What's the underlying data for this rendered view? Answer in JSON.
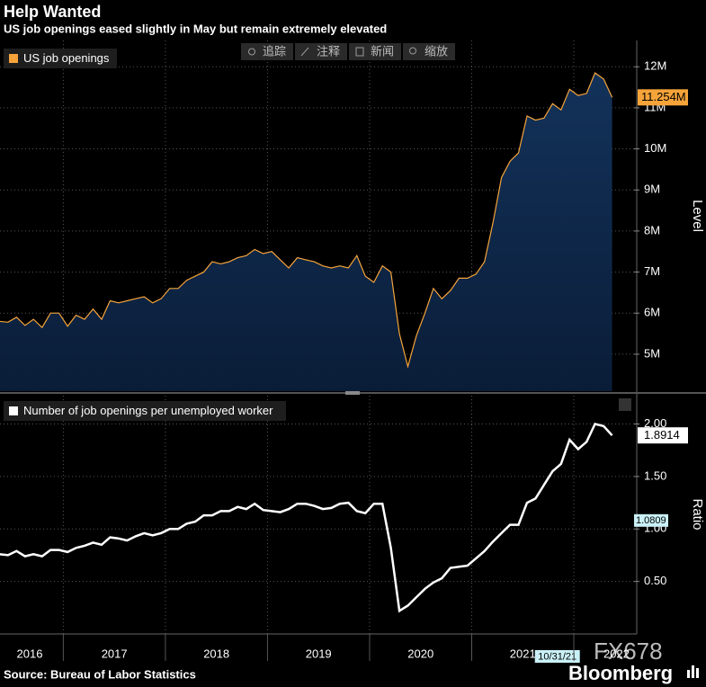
{
  "header": {
    "title": "Help Wanted",
    "subtitle": "US job openings eased slightly in May but remain extremely elevated"
  },
  "toolbar": [
    "追踪",
    "注释",
    "新闻",
    "缩放"
  ],
  "source": "Source: Bureau of Labor Statistics",
  "watermark": "FX678",
  "brand": "Bloomberg",
  "chart_data": [
    {
      "type": "area",
      "axis_label": "Level",
      "grid": true,
      "xlim": [
        2016.38,
        2022.59
      ],
      "x": [
        2016.375,
        2016.458,
        2016.542,
        2016.625,
        2016.708,
        2016.792,
        2016.875,
        2016.958,
        2017.042,
        2017.125,
        2017.208,
        2017.292,
        2017.375,
        2017.458,
        2017.542,
        2017.625,
        2017.708,
        2017.792,
        2017.875,
        2017.958,
        2018.042,
        2018.125,
        2018.208,
        2018.292,
        2018.375,
        2018.458,
        2018.542,
        2018.625,
        2018.708,
        2018.792,
        2018.875,
        2018.958,
        2019.042,
        2019.125,
        2019.208,
        2019.292,
        2019.375,
        2019.458,
        2019.542,
        2019.625,
        2019.708,
        2019.792,
        2019.875,
        2019.958,
        2020.042,
        2020.125,
        2020.208,
        2020.292,
        2020.375,
        2020.458,
        2020.542,
        2020.625,
        2020.708,
        2020.792,
        2020.875,
        2020.958,
        2021.042,
        2021.125,
        2021.208,
        2021.292,
        2021.375,
        2021.458,
        2021.542,
        2021.625,
        2021.708,
        2021.792,
        2021.875,
        2021.958,
        2022.042,
        2022.125,
        2022.208,
        2022.292,
        2022.375
      ],
      "ylim": [
        4.1,
        12.64
      ],
      "yticks": [
        {
          "value": 5,
          "label": "5M"
        },
        {
          "value": 6,
          "label": "6M"
        },
        {
          "value": 7,
          "label": "7M"
        },
        {
          "value": 8,
          "label": "8M"
        },
        {
          "value": 9,
          "label": "9M"
        },
        {
          "value": 10,
          "label": "10M"
        },
        {
          "value": 11,
          "label": "11M"
        },
        {
          "value": 12,
          "label": "12M"
        }
      ],
      "series": [
        {
          "name": "US job openings",
          "color": "#f6a43a",
          "values": [
            5.8,
            5.78,
            5.9,
            5.7,
            5.85,
            5.65,
            6.0,
            6.0,
            5.68,
            5.95,
            5.85,
            6.1,
            5.85,
            6.3,
            6.25,
            6.3,
            6.35,
            6.4,
            6.25,
            6.35,
            6.6,
            6.6,
            6.8,
            6.9,
            7.0,
            7.25,
            7.2,
            7.25,
            7.35,
            7.4,
            7.55,
            7.45,
            7.5,
            7.3,
            7.1,
            7.35,
            7.3,
            7.25,
            7.15,
            7.1,
            7.15,
            7.1,
            7.4,
            6.9,
            6.75,
            7.15,
            7.0,
            5.5,
            4.7,
            5.45,
            6.0,
            6.6,
            6.35,
            6.55,
            6.85,
            6.85,
            6.95,
            7.25,
            8.2,
            9.3,
            9.7,
            9.9,
            10.8,
            10.7,
            10.75,
            11.1,
            10.95,
            11.45,
            11.3,
            11.35,
            11.85,
            11.7,
            11.254
          ],
          "value_labels": [
            null,
            null,
            null,
            null,
            null,
            null,
            null,
            null,
            null,
            null,
            null,
            null,
            null,
            null,
            null,
            null,
            null,
            null,
            null,
            null,
            null,
            null,
            null,
            null,
            null,
            null,
            null,
            null,
            null,
            null,
            null,
            null,
            null,
            null,
            null,
            null,
            null,
            null,
            null,
            null,
            null,
            null,
            null,
            null,
            null,
            null,
            null,
            null,
            null,
            null,
            null,
            null,
            null,
            null,
            null,
            null,
            null,
            null,
            null,
            null,
            null,
            null,
            null,
            null,
            null,
            null,
            null,
            null,
            null,
            null,
            null,
            null,
            "11.254M"
          ]
        }
      ]
    },
    {
      "type": "line",
      "axis_label": "Ratio",
      "grid": true,
      "xlim": [
        2016.38,
        2022.59
      ],
      "xticks": [
        2016,
        2017,
        2018,
        2019,
        2020,
        2021,
        2022
      ],
      "x": [
        2016.375,
        2016.458,
        2016.542,
        2016.625,
        2016.708,
        2016.792,
        2016.875,
        2016.958,
        2017.042,
        2017.125,
        2017.208,
        2017.292,
        2017.375,
        2017.458,
        2017.542,
        2017.625,
        2017.708,
        2017.792,
        2017.875,
        2017.958,
        2018.042,
        2018.125,
        2018.208,
        2018.292,
        2018.375,
        2018.458,
        2018.542,
        2018.625,
        2018.708,
        2018.792,
        2018.875,
        2018.958,
        2019.042,
        2019.125,
        2019.208,
        2019.292,
        2019.375,
        2019.458,
        2019.542,
        2019.625,
        2019.708,
        2019.792,
        2019.875,
        2019.958,
        2020.042,
        2020.125,
        2020.208,
        2020.292,
        2020.375,
        2020.458,
        2020.542,
        2020.625,
        2020.708,
        2020.792,
        2020.875,
        2020.958,
        2021.042,
        2021.125,
        2021.208,
        2021.292,
        2021.375,
        2021.458,
        2021.542,
        2021.625,
        2021.708,
        2021.792,
        2021.875,
        2021.958,
        2022.042,
        2022.125,
        2022.208,
        2022.292,
        2022.375
      ],
      "ylim": [
        0,
        2.27
      ],
      "yticks": [
        {
          "value": 0.5,
          "label": "0.50"
        },
        {
          "value": 1,
          "label": "1.00"
        },
        {
          "value": 1.5,
          "label": "1.50"
        },
        {
          "value": 2,
          "label": "2.00"
        }
      ],
      "series": [
        {
          "name": "Number of job openings per unemployed worker",
          "color": "#ffffff",
          "values": [
            0.76,
            0.75,
            0.79,
            0.74,
            0.76,
            0.74,
            0.8,
            0.8,
            0.78,
            0.82,
            0.84,
            0.87,
            0.85,
            0.92,
            0.91,
            0.89,
            0.93,
            0.96,
            0.94,
            0.96,
            1.0,
            1.0,
            1.05,
            1.07,
            1.13,
            1.13,
            1.17,
            1.17,
            1.21,
            1.19,
            1.24,
            1.18,
            1.17,
            1.16,
            1.19,
            1.24,
            1.24,
            1.22,
            1.19,
            1.2,
            1.24,
            1.25,
            1.17,
            1.15,
            1.24,
            1.24,
            0.82,
            0.22,
            0.27,
            0.35,
            0.43,
            0.49,
            0.53,
            0.63,
            0.64,
            0.65,
            0.72,
            0.79,
            0.88,
            0.96,
            1.04,
            1.04,
            1.25,
            1.29,
            1.42,
            1.55,
            1.62,
            1.85,
            1.76,
            1.83,
            2.0,
            1.98,
            1.8914
          ]
        }
      ],
      "crosshair": {
        "x": 2021.83,
        "x_label": "10/31/21",
        "value": 1.0809
      }
    }
  ]
}
